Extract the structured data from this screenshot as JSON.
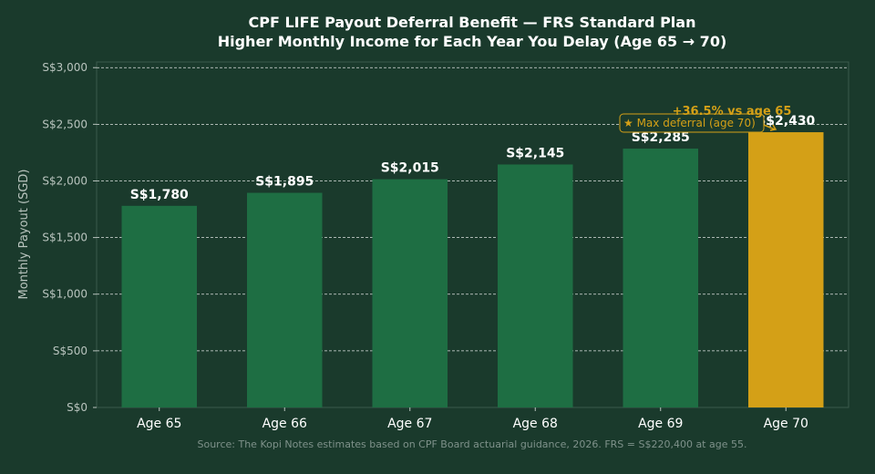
{
  "chart_data": {
    "type": "bar",
    "title": "CPF LIFE Payout Deferral Benefit — FRS Standard Plan",
    "subtitle": "Higher Monthly Income for Each Year You Delay (Age 65 → 70)",
    "xlabel": "",
    "ylabel": "Monthly Payout (SGD)",
    "categories": [
      "Age 65",
      "Age 66",
      "Age 67",
      "Age 68",
      "Age 69",
      "Age 70"
    ],
    "values": [
      1780,
      1895,
      2015,
      2145,
      2285,
      2430
    ],
    "value_labels": [
      "S$1,780",
      "S$1,895",
      "S$2,015",
      "S$2,145",
      "S$2,285",
      "S$2,430"
    ],
    "ylim": [
      0,
      3050
    ],
    "yticks": [
      0,
      500,
      1000,
      1500,
      2000,
      2500,
      3000
    ],
    "ytick_labels": [
      "S$0",
      "S$500",
      "S$1,000",
      "S$1,500",
      "S$2,000",
      "S$2,500",
      "S$3,000"
    ],
    "grid": true,
    "annotations": {
      "max_box": "★ Max deferral (age 70)",
      "pct": "+36.5% vs age 65"
    },
    "source": "Source: The Kopi Notes estimates based on CPF Board actuarial guidance, 2026. FRS = S$220,400 at age 55.",
    "colors": {
      "background": "#1a3a2c",
      "bar": "#1e6e43",
      "highlight_bar": "#d4a017",
      "grid": "#ffffff",
      "text": "#ffffff",
      "muted": "#b9c4be"
    }
  }
}
